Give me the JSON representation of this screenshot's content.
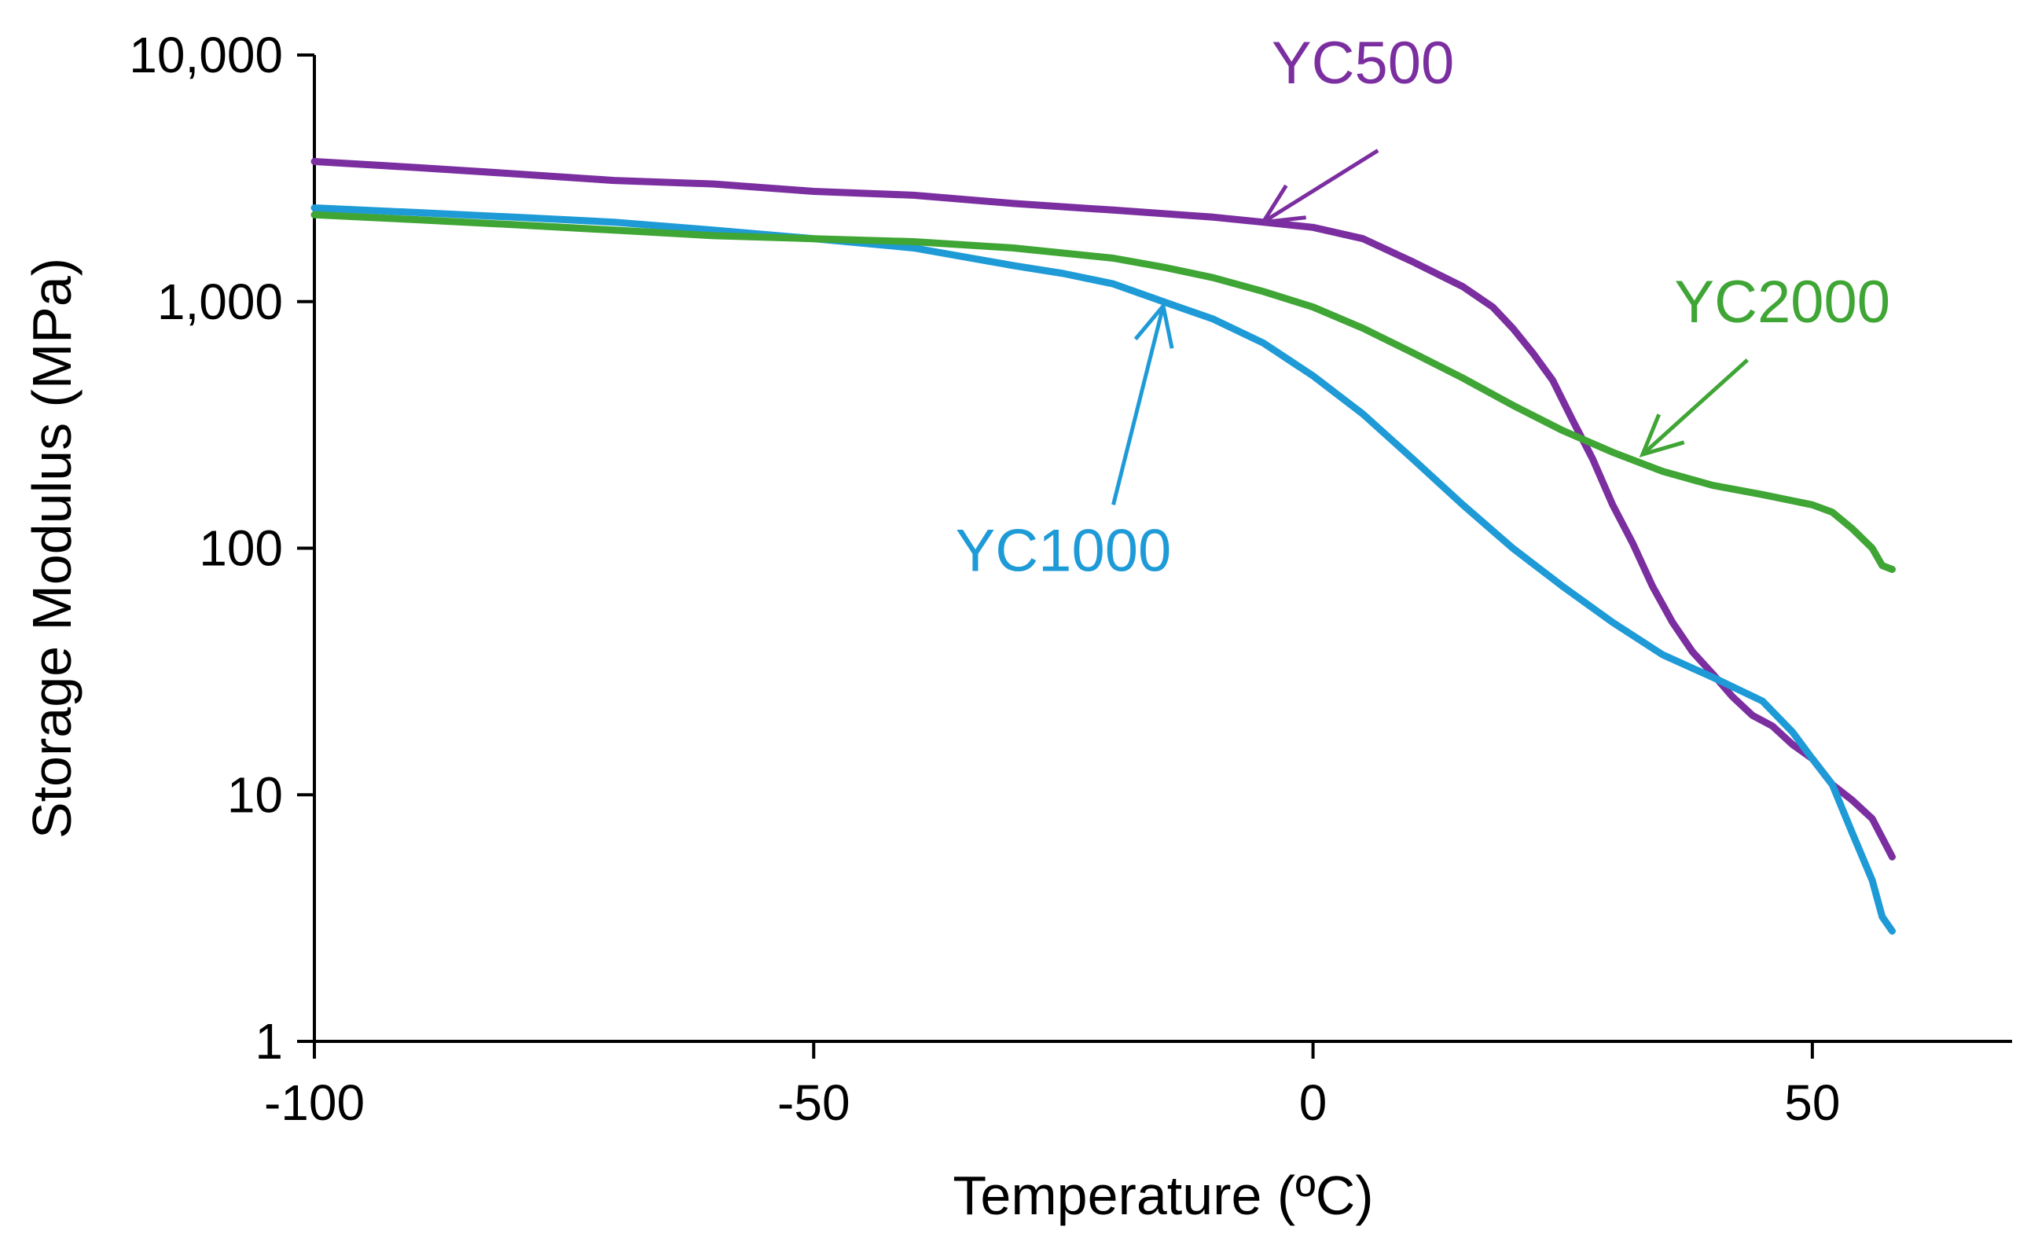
{
  "chart_data": {
    "type": "line",
    "title": "",
    "xlabel": "Temperature  (ºC)",
    "ylabel": "Storage Modulus  (MPa)",
    "yscale": "log",
    "xlim": [
      -100,
      70
    ],
    "ylim": [
      1,
      10000
    ],
    "grid": false,
    "x_ticks": [
      -100,
      -50,
      0,
      50
    ],
    "x_tick_labels": [
      "-100",
      "-50",
      "0",
      "50"
    ],
    "y_ticks": [
      1,
      10,
      100,
      1000,
      10000
    ],
    "y_tick_labels": [
      "1",
      "10",
      "100",
      "1,000",
      "10,000"
    ],
    "series": [
      {
        "name": "YC500",
        "color": "#7B2EA0",
        "label": {
          "text": "YC500",
          "anchor_x": -5,
          "anchor_y": 2100,
          "text_x": 5,
          "text_y": 9300,
          "tail_x": 6.5,
          "tail_y": 4100
        },
        "x": [
          -100,
          -90,
          -80,
          -70,
          -60,
          -50,
          -40,
          -30,
          -20,
          -10,
          -5,
          0,
          5,
          10,
          15,
          18,
          20,
          22,
          24,
          26,
          28,
          30,
          32,
          34,
          36,
          38,
          40,
          42,
          44,
          46,
          48,
          50,
          52,
          54,
          56,
          58
        ],
        "y": [
          3700,
          3500,
          3300,
          3100,
          3000,
          2800,
          2700,
          2500,
          2350,
          2200,
          2100,
          2000,
          1800,
          1450,
          1150,
          950,
          780,
          620,
          480,
          330,
          230,
          150,
          105,
          70,
          50,
          38,
          31,
          25,
          21,
          19,
          16,
          14,
          11,
          9.5,
          8,
          5.6
        ]
      },
      {
        "name": "YC1000",
        "color": "#1E9BD7",
        "label": {
          "text": "YC1000",
          "anchor_x": -15,
          "anchor_y": 960,
          "text_x": -25,
          "text_y": 98,
          "tail_x": -20,
          "tail_y": 150
        },
        "x": [
          -100,
          -90,
          -80,
          -70,
          -60,
          -50,
          -40,
          -30,
          -25,
          -20,
          -15,
          -10,
          -5,
          0,
          5,
          10,
          15,
          20,
          25,
          30,
          35,
          40,
          45,
          48,
          50,
          52,
          54,
          56,
          57,
          58
        ],
        "y": [
          2400,
          2300,
          2200,
          2100,
          1950,
          1800,
          1650,
          1400,
          1300,
          1180,
          1000,
          850,
          680,
          500,
          350,
          230,
          150,
          100,
          70,
          50,
          37,
          30,
          24,
          18,
          14,
          11,
          7,
          4.5,
          3.2,
          2.8
        ]
      },
      {
        "name": "YC2000",
        "color": "#3FA535",
        "label": {
          "text": "YC2000",
          "anchor_x": 33,
          "anchor_y": 240,
          "text_x": 47,
          "text_y": 1000,
          "tail_x": 43.5,
          "tail_y": 580
        },
        "x": [
          -100,
          -90,
          -80,
          -70,
          -60,
          -50,
          -40,
          -30,
          -20,
          -15,
          -10,
          -5,
          0,
          5,
          10,
          15,
          20,
          25,
          30,
          35,
          40,
          45,
          50,
          52,
          54,
          56,
          57,
          58
        ],
        "y": [
          2250,
          2150,
          2050,
          1950,
          1850,
          1800,
          1750,
          1650,
          1500,
          1380,
          1250,
          1100,
          950,
          780,
          620,
          490,
          380,
          300,
          245,
          205,
          180,
          165,
          150,
          140,
          120,
          100,
          85,
          82
        ]
      }
    ]
  }
}
